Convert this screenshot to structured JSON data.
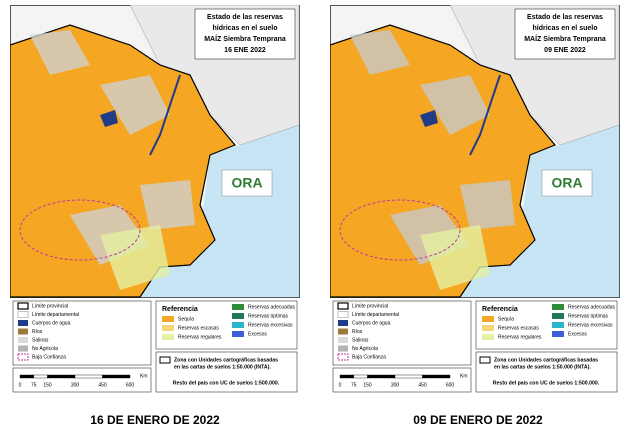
{
  "panels": [
    {
      "title": [
        "Estado de las reservas",
        "hídricas en el suelo",
        "MAÍZ Siembra Temprana",
        "16 ENE 2022"
      ],
      "logo": "ORA",
      "legend": [
        "Límite provincial",
        "Límite departamental",
        "Cuerpos de agua",
        "Ríos",
        "Salinas",
        "No Agrícola",
        "Baja Confianza"
      ],
      "reference_title": "Referencia",
      "reference": [
        "Sequía",
        "Reservas escasas",
        "Reservas regulares",
        "Reservas adecuadas",
        "Reservas óptimas",
        "Reservas excesivas",
        "Excesos"
      ],
      "note": [
        "Zona con Unidades cartográficas basadas",
        "en las cartas de suelos 1:50.000 (INTA).",
        "Resto del país con UC de suelos 1:500.000."
      ],
      "scale": [
        0,
        75,
        150,
        300,
        450,
        600
      ],
      "scale_unit": "Km",
      "caption": "16 DE ENERO DE 2022"
    },
    {
      "title": [
        "Estado de las reservas",
        "hídricas en el suelo",
        "MAÍZ Siembra Temprana",
        "09 ENE 2022"
      ],
      "logo": "ORA",
      "legend": [
        "Límite provincial",
        "Límite departamental",
        "Cuerpos de agua",
        "Ríos",
        "Salinas",
        "No Agrícola",
        "Baja Confianza"
      ],
      "reference_title": "Referencia",
      "reference": [
        "Sequía",
        "Reservas escasas",
        "Reservas regulares",
        "Reservas adecuadas",
        "Reservas óptimas",
        "Reservas excesivas",
        "Excesos"
      ],
      "note": [
        "Zona con Unidades cartográficas basadas",
        "en las cartas de suelos 1:50.000 (INTA).",
        "Resto del país con UC de suelos 1:500.000."
      ],
      "scale": [
        0,
        75,
        150,
        300,
        450,
        600
      ],
      "scale_unit": "Km",
      "caption": "09 DE ENERO DE 2022"
    }
  ]
}
